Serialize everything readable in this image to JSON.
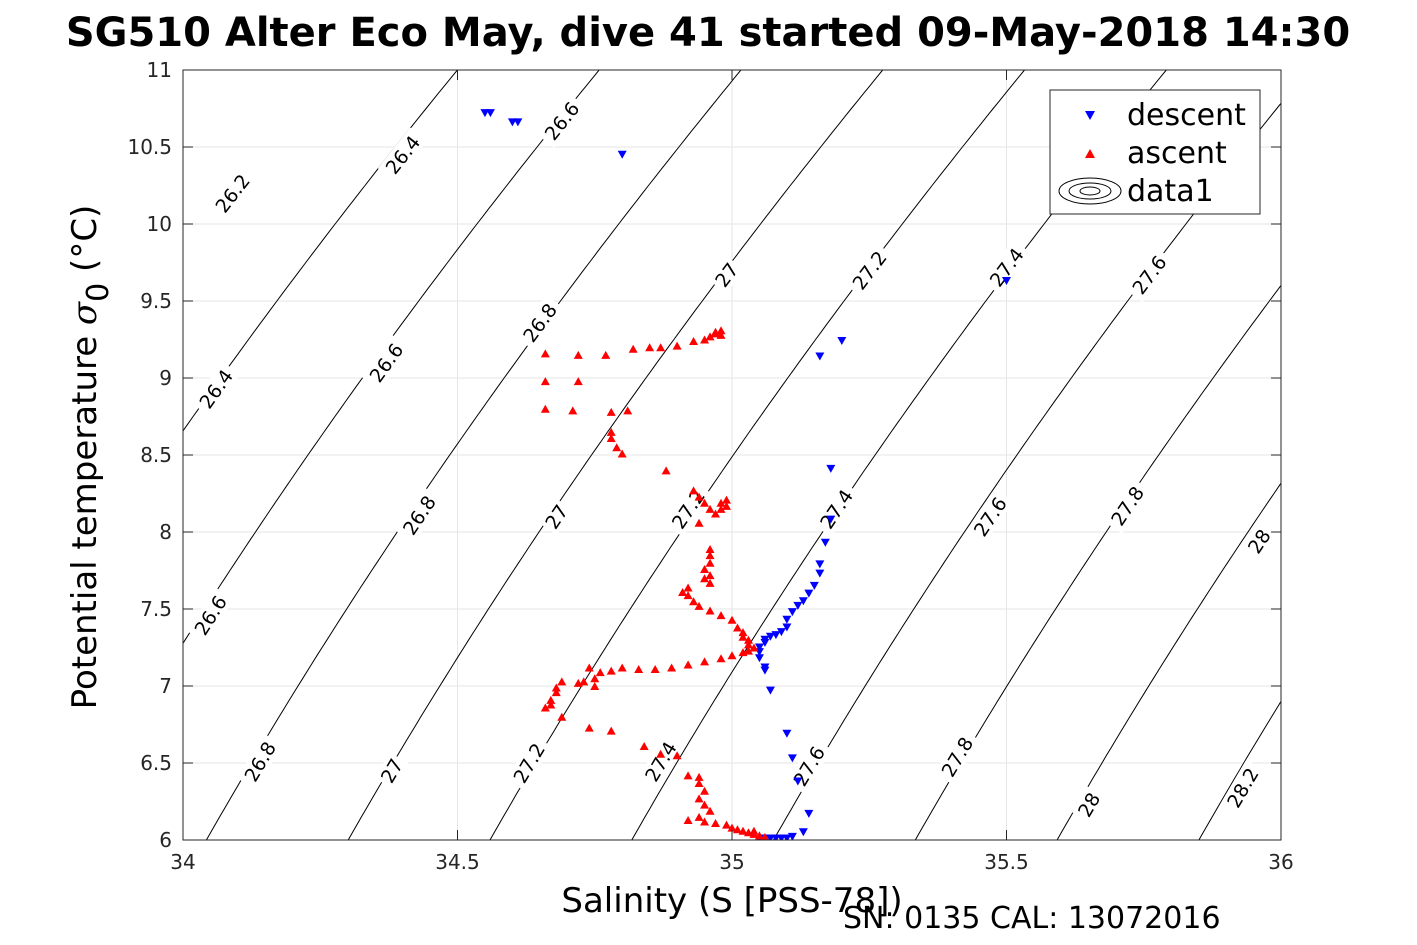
{
  "chart_data": {
    "type": "scatter",
    "title": "SG510 Alter Eco May, dive 41 started 09-May-2018 14:30",
    "xlabel": "Salinity (S [PSS-78])",
    "ylabel_main": "Potential temperature ",
    "ylabel_sigma": "σ",
    "ylabel_sub": "0",
    "ylabel_unit": " (°C)",
    "footer": "SN: 0135  CAL: 13072016",
    "xlim": [
      34,
      36
    ],
    "ylim": [
      6,
      11
    ],
    "xticks": [
      "34",
      "34.5",
      "35",
      "35.5",
      "36"
    ],
    "yticks": [
      "6",
      "6.5",
      "7",
      "7.5",
      "8",
      "8.5",
      "9",
      "9.5",
      "10",
      "10.5",
      "11"
    ],
    "grid": true,
    "legend_position": "top-right",
    "legend": [
      "descent",
      "ascent",
      "data1"
    ],
    "colors": {
      "descent": "#0000ff",
      "ascent": "#ff0000",
      "contour": "#000000",
      "grid": "#e6e6e6"
    },
    "contours": {
      "levels": [
        {
          "value": 26.2,
          "label": "26.2"
        },
        {
          "value": 26.4,
          "label": "26.4"
        },
        {
          "value": 26.6,
          "label": "26.6"
        },
        {
          "value": 26.8,
          "label": "26.8"
        },
        {
          "value": 27.0,
          "label": "27"
        },
        {
          "value": 27.2,
          "label": "27.2"
        },
        {
          "value": 27.4,
          "label": "27.4"
        },
        {
          "value": 27.6,
          "label": "27.6"
        },
        {
          "value": 27.8,
          "label": "27.8"
        },
        {
          "value": 28.0,
          "label": "28"
        },
        {
          "value": 28.2,
          "label": "28.2"
        }
      ],
      "label_positions": [
        {
          "label": "26.2",
          "s": 34.09,
          "t": 10.2
        },
        {
          "label": "26.4",
          "s": 34.4,
          "t": 10.45
        },
        {
          "label": "26.6",
          "s": 34.69,
          "t": 10.67
        },
        {
          "label": "26.4",
          "s": 34.06,
          "t": 8.93
        },
        {
          "label": "26.6",
          "s": 34.37,
          "t": 9.1
        },
        {
          "label": "26.8",
          "s": 34.65,
          "t": 9.36
        },
        {
          "label": "27",
          "s": 34.99,
          "t": 9.67
        },
        {
          "label": "27.2",
          "s": 35.25,
          "t": 9.7
        },
        {
          "label": "27.4",
          "s": 35.5,
          "t": 9.72
        },
        {
          "label": "27.6",
          "s": 35.76,
          "t": 9.67
        },
        {
          "label": "26.6",
          "s": 34.05,
          "t": 7.46
        },
        {
          "label": "26.8",
          "s": 34.43,
          "t": 8.11
        },
        {
          "label": "27",
          "s": 34.68,
          "t": 8.1
        },
        {
          "label": "27.2",
          "s": 34.92,
          "t": 8.15
        },
        {
          "label": "27.4",
          "s": 35.19,
          "t": 8.15
        },
        {
          "label": "27.6",
          "s": 35.47,
          "t": 8.1
        },
        {
          "label": "27.8",
          "s": 35.72,
          "t": 8.17
        },
        {
          "label": "28",
          "s": 35.96,
          "t": 7.94
        },
        {
          "label": "26.8",
          "s": 34.14,
          "t": 6.51
        },
        {
          "label": "27",
          "s": 34.38,
          "t": 6.45
        },
        {
          "label": "27.2",
          "s": 34.63,
          "t": 6.5
        },
        {
          "label": "27.4",
          "s": 34.87,
          "t": 6.51
        },
        {
          "label": "27.6",
          "s": 35.14,
          "t": 6.48
        },
        {
          "label": "27.8",
          "s": 35.41,
          "t": 6.54
        },
        {
          "label": "28",
          "s": 35.65,
          "t": 6.23
        },
        {
          "label": "28.2",
          "s": 35.93,
          "t": 6.34
        }
      ]
    },
    "series": [
      {
        "name": "descent",
        "marker": "triangle-down",
        "points": [
          [
            34.55,
            10.72
          ],
          [
            34.56,
            10.72
          ],
          [
            34.6,
            10.66
          ],
          [
            34.61,
            10.66
          ],
          [
            34.8,
            10.45
          ],
          [
            35.2,
            9.24
          ],
          [
            35.16,
            9.14
          ],
          [
            35.5,
            9.63
          ],
          [
            35.18,
            8.41
          ],
          [
            35.18,
            8.08
          ],
          [
            35.17,
            7.93
          ],
          [
            35.16,
            7.79
          ],
          [
            35.16,
            7.73
          ],
          [
            35.15,
            7.65
          ],
          [
            35.14,
            7.6
          ],
          [
            35.13,
            7.55
          ],
          [
            35.12,
            7.52
          ],
          [
            35.11,
            7.48
          ],
          [
            35.1,
            7.43
          ],
          [
            35.1,
            7.38
          ],
          [
            35.09,
            7.35
          ],
          [
            35.08,
            7.33
          ],
          [
            35.07,
            7.32
          ],
          [
            35.06,
            7.3
          ],
          [
            35.06,
            7.28
          ],
          [
            35.05,
            7.25
          ],
          [
            35.05,
            7.22
          ],
          [
            35.05,
            7.18
          ],
          [
            35.06,
            7.12
          ],
          [
            35.06,
            7.1
          ],
          [
            35.07,
            6.97
          ],
          [
            35.1,
            6.69
          ],
          [
            35.11,
            6.53
          ],
          [
            35.12,
            6.38
          ],
          [
            35.14,
            6.17
          ],
          [
            35.13,
            6.05
          ],
          [
            35.11,
            6.02
          ],
          [
            35.1,
            6.01
          ],
          [
            35.09,
            6.01
          ],
          [
            35.08,
            6.01
          ],
          [
            35.07,
            6.01
          ],
          [
            35.06,
            6.01
          ],
          [
            35.05,
            6.0
          ]
        ]
      },
      {
        "name": "ascent",
        "marker": "triangle-up",
        "points": [
          [
            34.66,
            9.16
          ],
          [
            34.72,
            9.15
          ],
          [
            34.77,
            9.15
          ],
          [
            34.82,
            9.19
          ],
          [
            34.85,
            9.2
          ],
          [
            34.87,
            9.2
          ],
          [
            34.9,
            9.21
          ],
          [
            34.93,
            9.24
          ],
          [
            34.95,
            9.25
          ],
          [
            34.96,
            9.27
          ],
          [
            34.97,
            9.3
          ],
          [
            34.98,
            9.31
          ],
          [
            34.98,
            9.28
          ],
          [
            34.97,
            9.29
          ],
          [
            34.66,
            8.98
          ],
          [
            34.72,
            8.98
          ],
          [
            34.66,
            8.8
          ],
          [
            34.71,
            8.79
          ],
          [
            34.78,
            8.78
          ],
          [
            34.81,
            8.79
          ],
          [
            34.78,
            8.65
          ],
          [
            34.78,
            8.61
          ],
          [
            34.79,
            8.55
          ],
          [
            34.8,
            8.51
          ],
          [
            34.88,
            8.4
          ],
          [
            34.93,
            8.27
          ],
          [
            34.94,
            8.23
          ],
          [
            34.95,
            8.19
          ],
          [
            34.96,
            8.15
          ],
          [
            34.97,
            8.12
          ],
          [
            34.98,
            8.19
          ],
          [
            34.99,
            8.17
          ],
          [
            34.99,
            8.21
          ],
          [
            34.98,
            8.15
          ],
          [
            34.94,
            8.06
          ],
          [
            34.96,
            7.89
          ],
          [
            34.96,
            7.85
          ],
          [
            34.96,
            7.8
          ],
          [
            34.95,
            7.76
          ],
          [
            34.96,
            7.72
          ],
          [
            34.95,
            7.7
          ],
          [
            34.96,
            7.67
          ],
          [
            34.92,
            7.64
          ],
          [
            34.91,
            7.61
          ],
          [
            34.92,
            7.59
          ],
          [
            34.93,
            7.55
          ],
          [
            34.94,
            7.52
          ],
          [
            34.96,
            7.49
          ],
          [
            34.98,
            7.46
          ],
          [
            35.0,
            7.43
          ],
          [
            35.01,
            7.38
          ],
          [
            35.02,
            7.35
          ],
          [
            35.02,
            7.32
          ],
          [
            35.03,
            7.3
          ],
          [
            35.03,
            7.27
          ],
          [
            35.04,
            7.25
          ],
          [
            35.03,
            7.23
          ],
          [
            35.02,
            7.22
          ],
          [
            35.0,
            7.2
          ],
          [
            34.98,
            7.18
          ],
          [
            34.95,
            7.16
          ],
          [
            34.92,
            7.14
          ],
          [
            34.89,
            7.12
          ],
          [
            34.86,
            7.11
          ],
          [
            34.83,
            7.11
          ],
          [
            34.8,
            7.12
          ],
          [
            34.78,
            7.1
          ],
          [
            34.76,
            7.09
          ],
          [
            34.75,
            7.05
          ],
          [
            34.73,
            7.03
          ],
          [
            34.75,
            7.0
          ],
          [
            34.74,
            7.12
          ],
          [
            34.72,
            7.02
          ],
          [
            34.69,
            7.03
          ],
          [
            34.68,
            6.99
          ],
          [
            34.68,
            6.96
          ],
          [
            34.67,
            6.91
          ],
          [
            34.67,
            6.88
          ],
          [
            34.66,
            6.86
          ],
          [
            34.69,
            6.8
          ],
          [
            34.74,
            6.73
          ],
          [
            34.78,
            6.71
          ],
          [
            34.84,
            6.61
          ],
          [
            34.87,
            6.56
          ],
          [
            34.9,
            6.55
          ],
          [
            34.92,
            6.42
          ],
          [
            34.94,
            6.41
          ],
          [
            34.94,
            6.37
          ],
          [
            34.95,
            6.32
          ],
          [
            34.94,
            6.27
          ],
          [
            34.95,
            6.23
          ],
          [
            34.96,
            6.19
          ],
          [
            34.94,
            6.15
          ],
          [
            34.92,
            6.13
          ],
          [
            34.95,
            6.12
          ],
          [
            34.97,
            6.11
          ],
          [
            34.99,
            6.1
          ],
          [
            35.0,
            6.08
          ],
          [
            35.01,
            6.07
          ],
          [
            35.02,
            6.06
          ],
          [
            35.03,
            6.05
          ],
          [
            35.04,
            6.04
          ],
          [
            35.05,
            6.03
          ],
          [
            35.06,
            6.02
          ],
          [
            35.04,
            6.06
          ]
        ]
      }
    ]
  }
}
